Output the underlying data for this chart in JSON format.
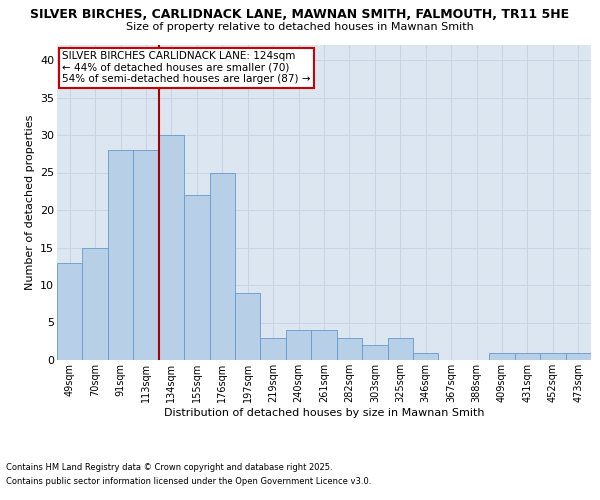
{
  "title1": "SILVER BIRCHES, CARLIDNACK LANE, MAWNAN SMITH, FALMOUTH, TR11 5HE",
  "title2": "Size of property relative to detached houses in Mawnan Smith",
  "xlabel": "Distribution of detached houses by size in Mawnan Smith",
  "ylabel": "Number of detached properties",
  "categories": [
    "49sqm",
    "70sqm",
    "91sqm",
    "113sqm",
    "134sqm",
    "155sqm",
    "176sqm",
    "197sqm",
    "219sqm",
    "240sqm",
    "261sqm",
    "282sqm",
    "303sqm",
    "325sqm",
    "346sqm",
    "367sqm",
    "388sqm",
    "409sqm",
    "431sqm",
    "452sqm",
    "473sqm"
  ],
  "values": [
    13,
    15,
    28,
    28,
    30,
    22,
    25,
    9,
    3,
    4,
    4,
    3,
    2,
    3,
    1,
    0,
    0,
    1,
    1,
    1,
    1
  ],
  "bar_color": "#b8cfe8",
  "bar_edge_color": "#6699cc",
  "grid_color": "#c8d4e4",
  "bg_color": "#dce6f0",
  "vline_x": 3.53,
  "vline_color": "#aa0000",
  "annotation_text": "SILVER BIRCHES CARLIDNACK LANE: 124sqm\n← 44% of detached houses are smaller (70)\n54% of semi-detached houses are larger (87) →",
  "annotation_box_color": "#ffffff",
  "annotation_box_edge": "#cc0000",
  "footnote1": "Contains HM Land Registry data © Crown copyright and database right 2025.",
  "footnote2": "Contains public sector information licensed under the Open Government Licence v3.0.",
  "ylim": [
    0,
    42
  ],
  "yticks": [
    0,
    5,
    10,
    15,
    20,
    25,
    30,
    35,
    40
  ]
}
